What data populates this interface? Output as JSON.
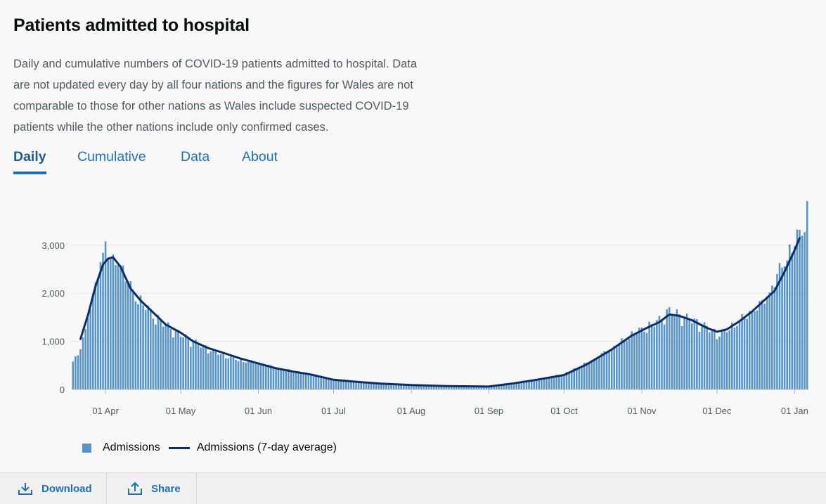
{
  "header": {
    "title": "Patients admitted to hospital",
    "description": "Daily and cumulative numbers of COVID-19 patients admitted to hospital. Data are not updated every day by all four nations and the figures for Wales are not comparable to those for other nations as Wales include suspected COVID-19 patients while the other nations include only confirmed cases."
  },
  "tabs": [
    {
      "label": "Daily"
    },
    {
      "label": "Cumulative"
    },
    {
      "label": "Data"
    },
    {
      "label": "About"
    }
  ],
  "legend": {
    "bars": "Admissions",
    "line": "Admissions (7-day average)"
  },
  "footer": {
    "download": "Download",
    "share": "Share"
  },
  "colors": {
    "bar": "#5694ca",
    "line": "#0b2e6b",
    "grid": "#e6e6e6",
    "link": "#1d70b8"
  },
  "chart_data": {
    "type": "bar",
    "x_start": "2020-03-19",
    "x_end": "2021-01-06",
    "x_tick_labels": [
      "01 Apr",
      "01 May",
      "01 Jun",
      "01 Jul",
      "01 Aug",
      "01 Sep",
      "01 Oct",
      "01 Nov",
      "01 Dec",
      "01 Jan"
    ],
    "x_tick_dates": [
      "2020-04-01",
      "2020-05-01",
      "2020-06-01",
      "2020-07-01",
      "2020-08-01",
      "2020-09-01",
      "2020-10-01",
      "2020-11-01",
      "2020-12-01",
      "2021-01-01"
    ],
    "y_ticks": [
      0,
      1000,
      2000,
      3000
    ],
    "y_tick_labels": [
      "0",
      "1,000",
      "2,000",
      "3,000"
    ],
    "ylim": [
      0,
      3700
    ],
    "grid": true,
    "legend_position": "bottom-left",
    "series": [
      {
        "name": "Admissions",
        "kind": "bar",
        "anchors": [
          [
            "2020-03-19",
            580
          ],
          [
            "2020-03-21",
            720
          ],
          [
            "2020-03-23",
            1050
          ],
          [
            "2020-03-25",
            1550
          ],
          [
            "2020-03-27",
            1900
          ],
          [
            "2020-03-29",
            2450
          ],
          [
            "2020-03-31",
            2900
          ],
          [
            "2020-04-01",
            3100
          ],
          [
            "2020-04-03",
            2650
          ],
          [
            "2020-04-06",
            2700
          ],
          [
            "2020-04-08",
            2500
          ],
          [
            "2020-04-12",
            2000
          ],
          [
            "2020-04-16",
            1800
          ],
          [
            "2020-04-20",
            1550
          ],
          [
            "2020-04-25",
            1350
          ],
          [
            "2020-05-01",
            1150
          ],
          [
            "2020-05-06",
            1000
          ],
          [
            "2020-05-12",
            850
          ],
          [
            "2020-05-18",
            720
          ],
          [
            "2020-05-25",
            600
          ],
          [
            "2020-06-01",
            560
          ],
          [
            "2020-06-08",
            450
          ],
          [
            "2020-06-15",
            380
          ],
          [
            "2020-06-22",
            320
          ],
          [
            "2020-07-01",
            210
          ],
          [
            "2020-07-10",
            160
          ],
          [
            "2020-07-20",
            120
          ],
          [
            "2020-08-01",
            90
          ],
          [
            "2020-08-15",
            70
          ],
          [
            "2020-09-01",
            60
          ],
          [
            "2020-09-10",
            120
          ],
          [
            "2020-09-20",
            200
          ],
          [
            "2020-10-01",
            320
          ],
          [
            "2020-10-10",
            550
          ],
          [
            "2020-10-20",
            850
          ],
          [
            "2020-10-28",
            1150
          ],
          [
            "2020-11-03",
            1300
          ],
          [
            "2020-11-08",
            1450
          ],
          [
            "2020-11-12",
            1650
          ],
          [
            "2020-11-16",
            1550
          ],
          [
            "2020-11-21",
            1450
          ],
          [
            "2020-11-27",
            1300
          ],
          [
            "2020-12-01",
            1150
          ],
          [
            "2020-12-04",
            1200
          ],
          [
            "2020-12-09",
            1400
          ],
          [
            "2020-12-14",
            1600
          ],
          [
            "2020-12-19",
            1800
          ],
          [
            "2020-12-23",
            2150
          ],
          [
            "2020-12-27",
            2600
          ],
          [
            "2020-12-30",
            2900
          ],
          [
            "2021-01-02",
            3150
          ],
          [
            "2021-01-04",
            3400
          ],
          [
            "2021-01-06",
            3700
          ]
        ]
      },
      {
        "name": "Admissions (7-day average)",
        "kind": "line",
        "points": [
          [
            "2020-03-22",
            1050
          ],
          [
            "2020-03-25",
            1550
          ],
          [
            "2020-03-28",
            2150
          ],
          [
            "2020-03-31",
            2600
          ],
          [
            "2020-04-02",
            2720
          ],
          [
            "2020-04-04",
            2750
          ],
          [
            "2020-04-07",
            2550
          ],
          [
            "2020-04-11",
            2100
          ],
          [
            "2020-04-15",
            1850
          ],
          [
            "2020-04-20",
            1600
          ],
          [
            "2020-04-25",
            1350
          ],
          [
            "2020-05-01",
            1180
          ],
          [
            "2020-05-06",
            1000
          ],
          [
            "2020-05-12",
            860
          ],
          [
            "2020-05-18",
            760
          ],
          [
            "2020-05-25",
            640
          ],
          [
            "2020-06-01",
            540
          ],
          [
            "2020-06-08",
            440
          ],
          [
            "2020-06-15",
            370
          ],
          [
            "2020-06-22",
            310
          ],
          [
            "2020-07-01",
            200
          ],
          [
            "2020-07-10",
            160
          ],
          [
            "2020-07-20",
            120
          ],
          [
            "2020-08-01",
            90
          ],
          [
            "2020-08-15",
            70
          ],
          [
            "2020-09-01",
            60
          ],
          [
            "2020-09-10",
            120
          ],
          [
            "2020-09-20",
            200
          ],
          [
            "2020-10-01",
            300
          ],
          [
            "2020-10-10",
            520
          ],
          [
            "2020-10-20",
            830
          ],
          [
            "2020-10-28",
            1120
          ],
          [
            "2020-11-03",
            1280
          ],
          [
            "2020-11-08",
            1400
          ],
          [
            "2020-11-12",
            1560
          ],
          [
            "2020-11-16",
            1530
          ],
          [
            "2020-11-21",
            1440
          ],
          [
            "2020-11-27",
            1280
          ],
          [
            "2020-12-01",
            1200
          ],
          [
            "2020-12-05",
            1250
          ],
          [
            "2020-12-10",
            1420
          ],
          [
            "2020-12-15",
            1620
          ],
          [
            "2020-12-20",
            1860
          ],
          [
            "2020-12-24",
            2050
          ],
          [
            "2020-12-28",
            2450
          ],
          [
            "2021-01-01",
            2900
          ],
          [
            "2021-01-03",
            3150
          ]
        ]
      }
    ]
  }
}
